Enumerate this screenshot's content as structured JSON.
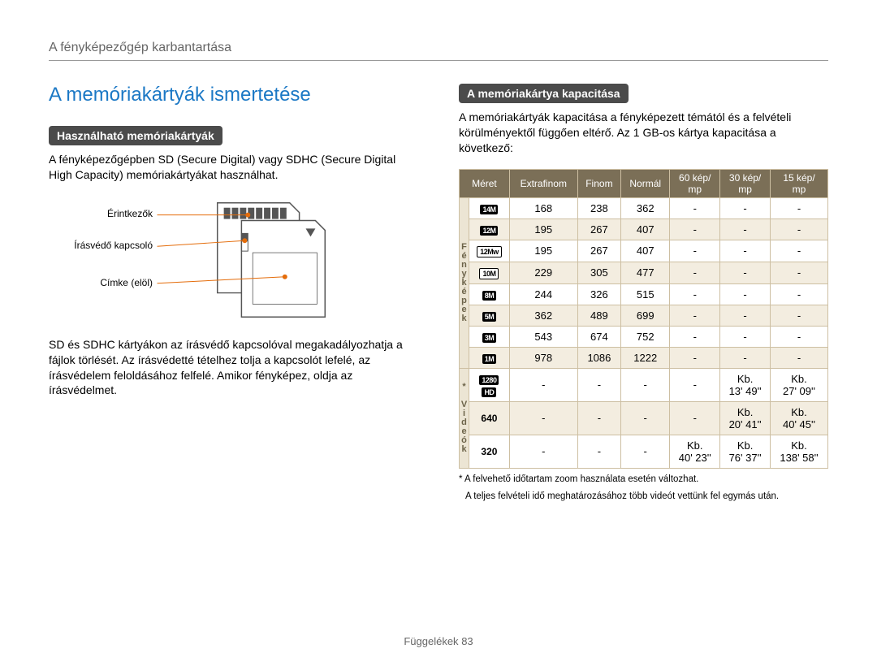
{
  "header": "A fényképezőgép karbantartása",
  "title": "A memóriakártyák ismertetése",
  "left": {
    "section_label": "Használható memóriakártyák",
    "p1": "A fényképezőgépben SD (Secure Digital) vagy SDHC (Secure Digital High Capacity) memóriakártyákat használhat.",
    "diagram": {
      "label_contacts": "Érintkezők",
      "label_switch": "Írásvédő kapcsoló",
      "label_label": "Címke (elöl)",
      "line_color": "#e46c0a",
      "card_stroke": "#555555"
    },
    "p2": "SD és SDHC kártyákon az írásvédő kapcsolóval megakadályozhatja a fájlok törlését. Az írásvédetté tételhez tolja a kapcsolót lefelé, az írásvédelem feloldásához felfelé. Amikor fényképez, oldja az írásvédelmet."
  },
  "right": {
    "section_label": "A memóriakártya kapacitása",
    "p1": "A memóriakártyák kapacitása a fényképezett témától és a felvételi körülményektől függően eltérő. Az 1 GB-os kártya kapacitása a következő:",
    "table": {
      "header_bg": "#7b6f57",
      "header_fg": "#ffffff",
      "border_color": "#cdbfa2",
      "alt_row_bg": "#f3ede0",
      "columns": [
        "Méret",
        "Extrafinom",
        "Finom",
        "Normál",
        "60 kép/\nmp",
        "30 kép/\nmp",
        "15 kép/\nmp"
      ],
      "groups": [
        {
          "label": "Fényképek",
          "rows": [
            {
              "size": "14M",
              "icon": true,
              "cells": [
                "168",
                "238",
                "362",
                "-",
                "-",
                "-"
              ]
            },
            {
              "size": "12M",
              "icon": true,
              "cells": [
                "195",
                "267",
                "407",
                "-",
                "-",
                "-"
              ]
            },
            {
              "size": "12Mw",
              "icon": true,
              "boxed": true,
              "cells": [
                "195",
                "267",
                "407",
                "-",
                "-",
                "-"
              ]
            },
            {
              "size": "10M",
              "icon": true,
              "boxed": true,
              "cells": [
                "229",
                "305",
                "477",
                "-",
                "-",
                "-"
              ]
            },
            {
              "size": "8M",
              "icon": true,
              "cells": [
                "244",
                "326",
                "515",
                "-",
                "-",
                "-"
              ]
            },
            {
              "size": "5M",
              "icon": true,
              "cells": [
                "362",
                "489",
                "699",
                "-",
                "-",
                "-"
              ]
            },
            {
              "size": "3M",
              "icon": true,
              "cells": [
                "543",
                "674",
                "752",
                "-",
                "-",
                "-"
              ]
            },
            {
              "size": "1M",
              "icon": true,
              "cells": [
                "978",
                "1086",
                "1222",
                "-",
                "-",
                "-"
              ]
            }
          ]
        },
        {
          "label": "* Videók",
          "rows": [
            {
              "size": "1280\nHD",
              "icon": true,
              "cells": [
                "-",
                "-",
                "-",
                "-",
                "Kb.\n13' 49''",
                "Kb.\n27' 09''"
              ]
            },
            {
              "size": "640",
              "icon": false,
              "cells": [
                "-",
                "-",
                "-",
                "-",
                "Kb.\n20' 41''",
                "Kb.\n40' 45''"
              ]
            },
            {
              "size": "320",
              "icon": false,
              "cells": [
                "-",
                "-",
                "-",
                "Kb.\n40' 23''",
                "Kb.\n76' 37''",
                "Kb.\n138' 58''"
              ]
            }
          ]
        }
      ]
    },
    "note1": "* A felvehető időtartam zoom használata esetén változhat.",
    "note2": "A teljes felvételi idő meghatározásához több videót vettünk fel egymás után."
  },
  "footer": {
    "label": "Függelékek",
    "page": "83"
  }
}
